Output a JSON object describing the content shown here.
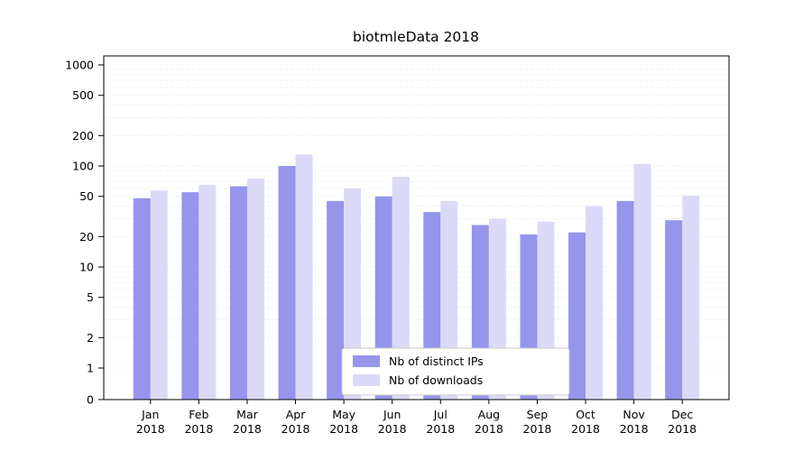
{
  "chart_data": {
    "type": "bar",
    "title": "biotmleData 2018",
    "months": [
      "Jan",
      "Feb",
      "Mar",
      "Apr",
      "May",
      "Jun",
      "Jul",
      "Aug",
      "Sep",
      "Oct",
      "Nov",
      "Dec"
    ],
    "year": "2018",
    "series": [
      {
        "name": "Nb of distinct IPs",
        "color": "#9595ec",
        "values": [
          48,
          55,
          63,
          100,
          45,
          50,
          35,
          26,
          21,
          22,
          45,
          29
        ]
      },
      {
        "name": "Nb of downloads",
        "color": "#dadaf8",
        "values": [
          57,
          65,
          75,
          130,
          60,
          78,
          45,
          30,
          28,
          40,
          105,
          51
        ]
      }
    ],
    "y_ticks": [
      0,
      1,
      2,
      5,
      10,
      20,
      50,
      100,
      200,
      500,
      1000
    ],
    "y_scale": "symlog",
    "ylim": [
      0,
      1300
    ],
    "grid": true,
    "legend_position": "lower center",
    "grid_color": "#c8c8c8",
    "axis_color": "#000000"
  }
}
